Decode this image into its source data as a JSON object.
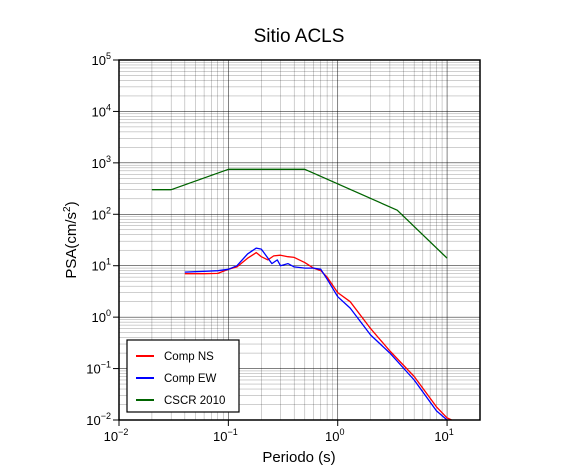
{
  "chart_data": {
    "type": "line",
    "title": "Sitio ACLS",
    "xlabel": "Periodo (s)",
    "ylabel_main": "PSA(cm/s",
    "ylabel_sup": "2",
    "ylabel_tail": ")",
    "xscale": "log",
    "yscale": "log",
    "xlim": [
      0.01,
      20
    ],
    "ylim": [
      0.01,
      100000
    ],
    "grid": true,
    "legend_position": "bottom-left",
    "x_ticks": [
      {
        "value": 0.01,
        "base": "10",
        "exp": "−2"
      },
      {
        "value": 0.1,
        "base": "10",
        "exp": "−1"
      },
      {
        "value": 1,
        "base": "10",
        "exp": "0"
      },
      {
        "value": 10,
        "base": "10",
        "exp": "1"
      }
    ],
    "y_ticks": [
      {
        "value": 0.01,
        "base": "10",
        "exp": "−2"
      },
      {
        "value": 0.1,
        "base": "10",
        "exp": "−1"
      },
      {
        "value": 1,
        "base": "10",
        "exp": "0"
      },
      {
        "value": 10,
        "base": "10",
        "exp": "1"
      },
      {
        "value": 100,
        "base": "10",
        "exp": "2"
      },
      {
        "value": 1000,
        "base": "10",
        "exp": "3"
      },
      {
        "value": 10000,
        "base": "10",
        "exp": "4"
      },
      {
        "value": 100000,
        "base": "10",
        "exp": "5"
      }
    ],
    "series": [
      {
        "name": "Comp NS",
        "color": "#ff0000",
        "points": [
          [
            0.04,
            7.0
          ],
          [
            0.06,
            7.0
          ],
          [
            0.08,
            7.1
          ],
          [
            0.1,
            8.5
          ],
          [
            0.12,
            9.5
          ],
          [
            0.15,
            14.0
          ],
          [
            0.18,
            18.0
          ],
          [
            0.2,
            15.0
          ],
          [
            0.23,
            13.0
          ],
          [
            0.26,
            15.5
          ],
          [
            0.3,
            16.0
          ],
          [
            0.35,
            15.0
          ],
          [
            0.4,
            14.5
          ],
          [
            0.5,
            11.5
          ],
          [
            0.6,
            9.0
          ],
          [
            0.7,
            8.0
          ],
          [
            0.8,
            6.0
          ],
          [
            1.0,
            3.0
          ],
          [
            1.3,
            2.0
          ],
          [
            2.0,
            0.6
          ],
          [
            3.0,
            0.22
          ],
          [
            5.0,
            0.07
          ],
          [
            8.0,
            0.018
          ],
          [
            10.0,
            0.011
          ],
          [
            11.0,
            0.01
          ]
        ]
      },
      {
        "name": "Comp EW",
        "color": "#0000ff",
        "points": [
          [
            0.04,
            7.5
          ],
          [
            0.06,
            7.8
          ],
          [
            0.08,
            8.0
          ],
          [
            0.1,
            8.5
          ],
          [
            0.12,
            10.0
          ],
          [
            0.15,
            17.0
          ],
          [
            0.18,
            22.0
          ],
          [
            0.2,
            21.0
          ],
          [
            0.22,
            16.0
          ],
          [
            0.25,
            11.0
          ],
          [
            0.28,
            13.0
          ],
          [
            0.3,
            10.0
          ],
          [
            0.35,
            11.0
          ],
          [
            0.4,
            9.5
          ],
          [
            0.5,
            9.0
          ],
          [
            0.6,
            9.0
          ],
          [
            0.7,
            8.5
          ],
          [
            0.8,
            5.5
          ],
          [
            1.0,
            2.5
          ],
          [
            1.3,
            1.5
          ],
          [
            2.0,
            0.45
          ],
          [
            3.0,
            0.2
          ],
          [
            5.0,
            0.06
          ],
          [
            8.0,
            0.015
          ],
          [
            10.0,
            0.01
          ]
        ]
      },
      {
        "name": "CSCR 2010",
        "color": "#006400",
        "points": [
          [
            0.02,
            300
          ],
          [
            0.03,
            300
          ],
          [
            0.1,
            750
          ],
          [
            0.5,
            750
          ],
          [
            3.5,
            120
          ],
          [
            10.0,
            14
          ]
        ]
      }
    ]
  }
}
